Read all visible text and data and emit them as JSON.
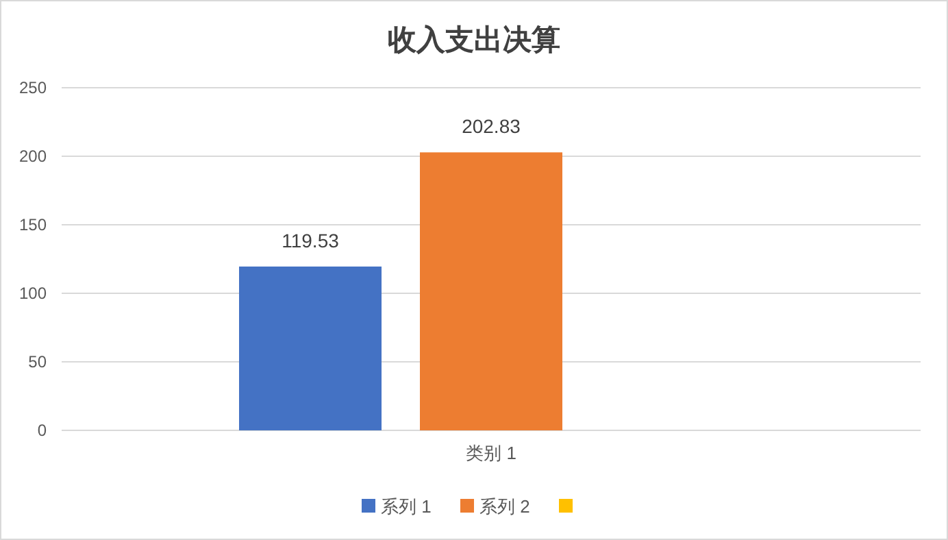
{
  "chart_data": {
    "type": "bar",
    "title": "收入支出决算",
    "categories": [
      "类别 1"
    ],
    "series": [
      {
        "name": "系列 1",
        "color": "#4472c4",
        "values": [
          119.53
        ]
      },
      {
        "name": "系列 2",
        "color": "#ed7d31",
        "values": [
          202.83
        ]
      },
      {
        "color": "#ffc000",
        "values": [
          null
        ]
      }
    ],
    "ylim": [
      0,
      250
    ],
    "yticks": [
      0,
      50,
      100,
      150,
      200,
      250
    ],
    "grid": "y",
    "legend": "bottom",
    "data_labels": true
  }
}
